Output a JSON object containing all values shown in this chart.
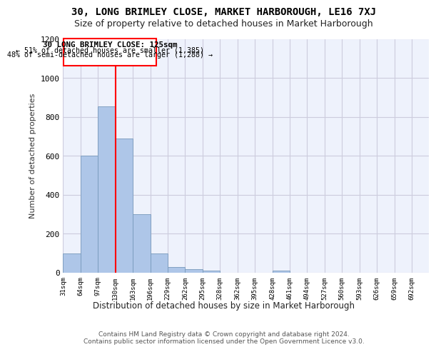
{
  "title1": "30, LONG BRIMLEY CLOSE, MARKET HARBOROUGH, LE16 7XJ",
  "title2": "Size of property relative to detached houses in Market Harborough",
  "xlabel": "Distribution of detached houses by size in Market Harborough",
  "ylabel": "Number of detached properties",
  "footer1": "Contains HM Land Registry data © Crown copyright and database right 2024.",
  "footer2": "Contains public sector information licensed under the Open Government Licence v3.0.",
  "annotation_title": "30 LONG BRIMLEY CLOSE: 125sqm",
  "annotation_line1": "← 51% of detached houses are smaller (1,385)",
  "annotation_line2": "48% of semi-detached houses are larger (1,288) →",
  "bar_labels": [
    "31sqm",
    "64sqm",
    "97sqm",
    "130sqm",
    "163sqm",
    "196sqm",
    "229sqm",
    "262sqm",
    "295sqm",
    "328sqm",
    "362sqm",
    "395sqm",
    "428sqm",
    "461sqm",
    "494sqm",
    "527sqm",
    "560sqm",
    "593sqm",
    "626sqm",
    "659sqm",
    "692sqm"
  ],
  "bar_values": [
    100,
    600,
    855,
    690,
    300,
    100,
    30,
    20,
    10,
    0,
    0,
    0,
    10,
    0,
    0,
    0,
    0,
    0,
    0,
    0,
    0
  ],
  "bar_color": "#aec6e8",
  "bar_edge_color": "#7799bb",
  "grid_color": "#ccccdd",
  "vline_x": 3.0,
  "vline_color": "red",
  "ylim": [
    0,
    1200
  ],
  "yticks": [
    0,
    200,
    400,
    600,
    800,
    1000,
    1200
  ],
  "bg_color": "#eef2fc",
  "box_edge_color": "red",
  "title1_fontsize": 10,
  "title2_fontsize": 9
}
